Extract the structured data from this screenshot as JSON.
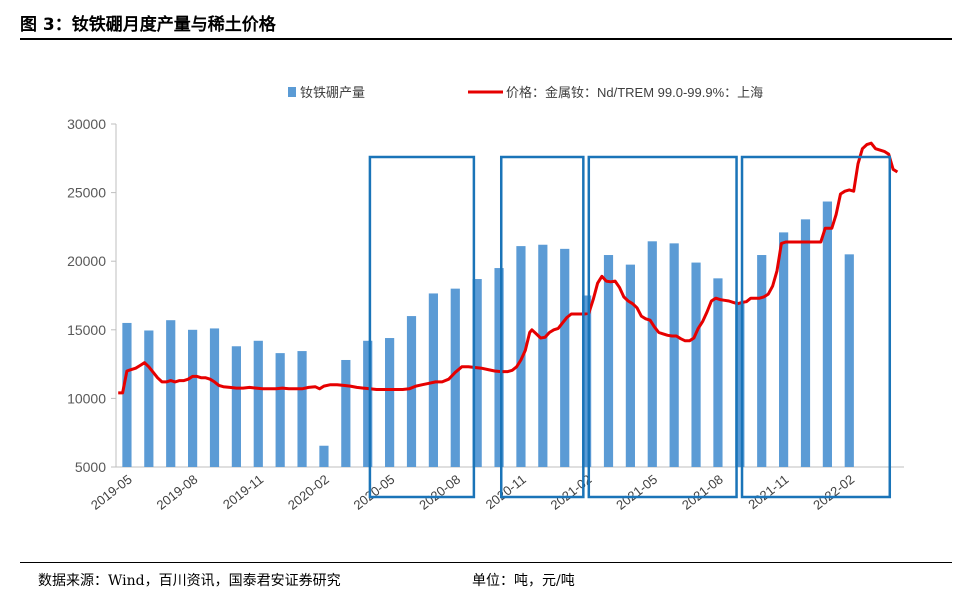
{
  "figure_title": "图 3：钕铁硼月度产量与稀土价格",
  "footer": {
    "source": "数据来源：Wind，百川资讯，国泰君安证券研究",
    "unit": "单位：吨，元/吨"
  },
  "chart_data": {
    "type": "bar",
    "legend_position": "top",
    "grid": false,
    "y_ticks": [
      5000,
      10000,
      15000,
      20000,
      25000,
      30000
    ],
    "ylim": [
      5000,
      30000
    ],
    "x_tick_labels": [
      "2019-05",
      "2019-08",
      "2019-11",
      "2020-02",
      "2020-05",
      "2020-08",
      "2020-11",
      "2021-02",
      "2021-05",
      "2021-08",
      "2021-11",
      "2022-02"
    ],
    "months": [
      "2019-05",
      "2019-06",
      "2019-07",
      "2019-08",
      "2019-09",
      "2019-10",
      "2019-11",
      "2019-12",
      "2020-01",
      "2020-02",
      "2020-03",
      "2020-04",
      "2020-05",
      "2020-06",
      "2020-07",
      "2020-08",
      "2020-09",
      "2020-10",
      "2020-11",
      "2020-12",
      "2021-01",
      "2021-02",
      "2021-03",
      "2021-04",
      "2021-05",
      "2021-06",
      "2021-07",
      "2021-08",
      "2021-09",
      "2021-10",
      "2021-11",
      "2021-12",
      "2022-01",
      "2022-02",
      "2022-03",
      "2022-04"
    ],
    "bar_series": {
      "name": "钕铁硼产量",
      "color": "#5b9bd5",
      "values": [
        15500,
        14950,
        15700,
        15000,
        15100,
        13800,
        14200,
        13300,
        13450,
        6550,
        12800,
        14200,
        14400,
        16000,
        17650,
        18000,
        18700,
        19500,
        21100,
        21200,
        20900,
        17500,
        20450,
        19750,
        21450,
        21300,
        19900,
        18750,
        17000,
        20450,
        22100,
        23050,
        24350,
        20500,
        null,
        null
      ]
    },
    "line_series": {
      "name": "价格：金属钕：Nd/TREM 99.0-99.9%：上海",
      "color": "#e60000",
      "points": [
        [
          0.1,
          10400
        ],
        [
          0.3,
          10400
        ],
        [
          0.5,
          12000
        ],
        [
          0.7,
          12100
        ],
        [
          0.9,
          12200
        ],
        [
          1.1,
          12400
        ],
        [
          1.3,
          12600
        ],
        [
          1.5,
          12300
        ],
        [
          1.7,
          11900
        ],
        [
          1.9,
          11500
        ],
        [
          2.1,
          11200
        ],
        [
          2.3,
          11200
        ],
        [
          2.5,
          11300
        ],
        [
          2.7,
          11200
        ],
        [
          2.9,
          11300
        ],
        [
          3.1,
          11300
        ],
        [
          3.3,
          11400
        ],
        [
          3.5,
          11600
        ],
        [
          3.7,
          11600
        ],
        [
          3.9,
          11500
        ],
        [
          4.1,
          11500
        ],
        [
          4.3,
          11400
        ],
        [
          4.5,
          11200
        ],
        [
          4.7,
          10950
        ],
        [
          4.9,
          10850
        ],
        [
          5.2,
          10800
        ],
        [
          5.5,
          10750
        ],
        [
          5.8,
          10750
        ],
        [
          6.1,
          10800
        ],
        [
          6.4,
          10750
        ],
        [
          6.7,
          10700
        ],
        [
          7.0,
          10700
        ],
        [
          7.3,
          10700
        ],
        [
          7.6,
          10750
        ],
        [
          7.9,
          10700
        ],
        [
          8.2,
          10700
        ],
        [
          8.5,
          10700
        ],
        [
          8.8,
          10800
        ],
        [
          9.1,
          10850
        ],
        [
          9.3,
          10700
        ],
        [
          9.5,
          10900
        ],
        [
          9.8,
          11000
        ],
        [
          10.1,
          11000
        ],
        [
          10.4,
          10950
        ],
        [
          10.7,
          10900
        ],
        [
          11.0,
          10800
        ],
        [
          11.3,
          10750
        ],
        [
          11.6,
          10700
        ],
        [
          11.9,
          10650
        ],
        [
          12.2,
          10650
        ],
        [
          12.5,
          10650
        ],
        [
          12.8,
          10650
        ],
        [
          13.1,
          10650
        ],
        [
          13.4,
          10700
        ],
        [
          13.7,
          10900
        ],
        [
          14.0,
          11000
        ],
        [
          14.3,
          11100
        ],
        [
          14.6,
          11200
        ],
        [
          14.9,
          11200
        ],
        [
          15.2,
          11400
        ],
        [
          15.5,
          11900
        ],
        [
          15.8,
          12300
        ],
        [
          16.1,
          12300
        ],
        [
          16.4,
          12250
        ],
        [
          16.7,
          12200
        ],
        [
          17.0,
          12100
        ],
        [
          17.3,
          12000
        ],
        [
          17.6,
          11950
        ],
        [
          17.9,
          11950
        ],
        [
          18.1,
          12050
        ],
        [
          18.3,
          12300
        ],
        [
          18.5,
          12800
        ],
        [
          18.7,
          13500
        ],
        [
          18.9,
          14800
        ],
        [
          19.0,
          15000
        ],
        [
          19.2,
          14700
        ],
        [
          19.4,
          14400
        ],
        [
          19.6,
          14450
        ],
        [
          19.8,
          14800
        ],
        [
          20.0,
          15000
        ],
        [
          20.2,
          15100
        ],
        [
          20.4,
          15500
        ],
        [
          20.6,
          15900
        ],
        [
          20.8,
          16150
        ],
        [
          21.0,
          16150
        ],
        [
          21.2,
          16150
        ],
        [
          21.4,
          16150
        ],
        [
          21.6,
          16200
        ],
        [
          21.8,
          17200
        ],
        [
          22.0,
          18400
        ],
        [
          22.2,
          18900
        ],
        [
          22.4,
          18550
        ],
        [
          22.6,
          18500
        ],
        [
          22.8,
          18550
        ],
        [
          23.0,
          18100
        ],
        [
          23.2,
          17400
        ],
        [
          23.4,
          17100
        ],
        [
          23.6,
          16900
        ],
        [
          23.8,
          16600
        ],
        [
          24.0,
          16000
        ],
        [
          24.2,
          15800
        ],
        [
          24.4,
          15700
        ],
        [
          24.6,
          15200
        ],
        [
          24.8,
          14800
        ],
        [
          25.0,
          14700
        ],
        [
          25.2,
          14600
        ],
        [
          25.4,
          14550
        ],
        [
          25.6,
          14550
        ],
        [
          25.8,
          14350
        ],
        [
          26.0,
          14200
        ],
        [
          26.2,
          14200
        ],
        [
          26.4,
          14400
        ],
        [
          26.6,
          15100
        ],
        [
          26.8,
          15600
        ],
        [
          27.0,
          16300
        ],
        [
          27.2,
          17100
        ],
        [
          27.4,
          17300
        ],
        [
          27.6,
          17200
        ],
        [
          27.8,
          17150
        ],
        [
          28.0,
          17100
        ],
        [
          28.2,
          17000
        ],
        [
          28.4,
          16900
        ],
        [
          28.6,
          17000
        ],
        [
          28.8,
          17050
        ],
        [
          29.0,
          17300
        ],
        [
          29.2,
          17300
        ],
        [
          29.4,
          17300
        ],
        [
          29.6,
          17400
        ],
        [
          29.8,
          17600
        ],
        [
          30.0,
          18200
        ],
        [
          30.2,
          19300
        ],
        [
          30.4,
          21300
        ],
        [
          30.6,
          21400
        ],
        [
          30.8,
          21400
        ],
        [
          31.0,
          21400
        ],
        [
          31.3,
          21400
        ],
        [
          31.6,
          21400
        ],
        [
          31.9,
          21400
        ],
        [
          32.2,
          21400
        ],
        [
          32.4,
          22400
        ],
        [
          32.7,
          22400
        ],
        [
          32.9,
          23400
        ],
        [
          33.1,
          24900
        ],
        [
          33.3,
          25100
        ],
        [
          33.5,
          25200
        ],
        [
          33.7,
          25100
        ],
        [
          33.9,
          27100
        ],
        [
          34.1,
          28200
        ],
        [
          34.3,
          28500
        ],
        [
          34.5,
          28600
        ],
        [
          34.7,
          28200
        ],
        [
          34.9,
          28100
        ],
        [
          35.1,
          28000
        ],
        [
          35.3,
          27800
        ],
        [
          35.5,
          26700
        ],
        [
          35.7,
          26500
        ]
      ]
    },
    "highlight_boxes": [
      {
        "from": "2020-04",
        "to": "2020-09"
      },
      {
        "from": "2020-10",
        "to": "2021-02"
      },
      {
        "from": "2021-02",
        "to": "2021-09"
      },
      {
        "from": "2021-09",
        "to": "2022-04"
      }
    ],
    "highlight_color": "#1a74b8"
  }
}
